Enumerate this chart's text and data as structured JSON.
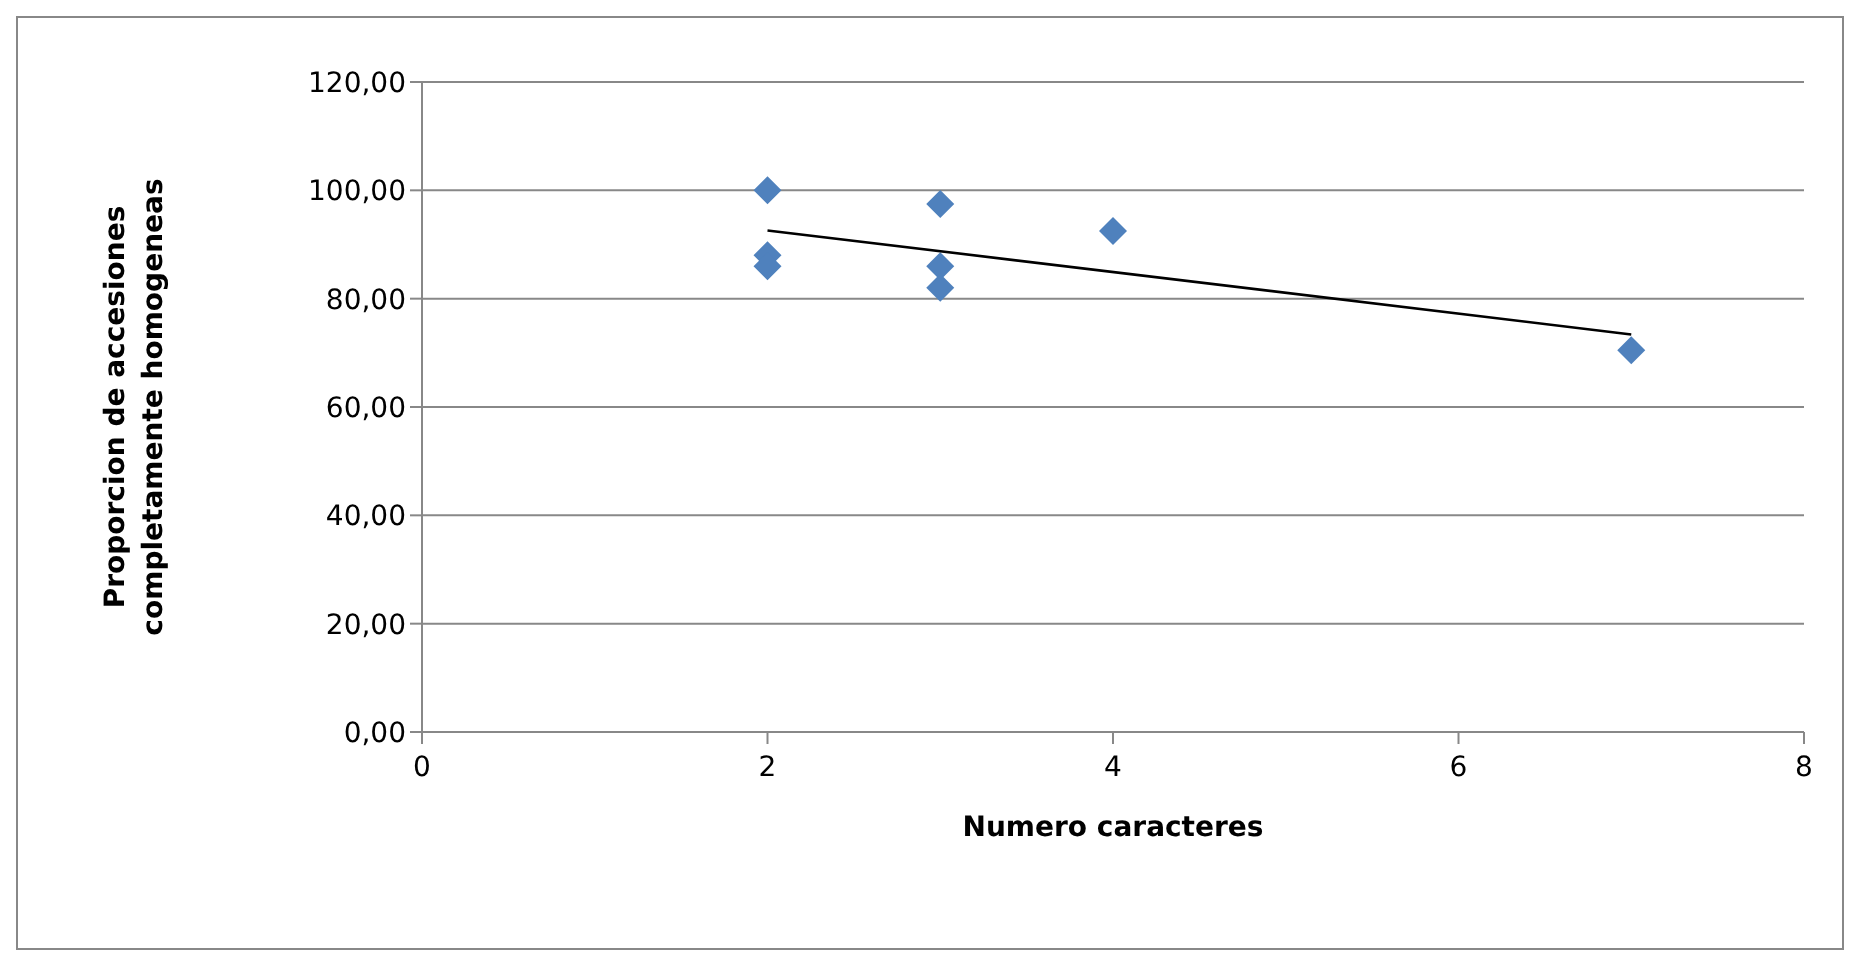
{
  "chart_data": {
    "type": "scatter",
    "xlabel": "Numero caracteres",
    "ylabel": "Proporcion de accesiones completamente homogeneas",
    "xlim": [
      0,
      8
    ],
    "xticks": [
      0,
      2,
      4,
      6,
      8
    ],
    "ylim": [
      0,
      120
    ],
    "yticks": [
      {
        "value": 0,
        "label": "0,00"
      },
      {
        "value": 20,
        "label": "20,00"
      },
      {
        "value": 40,
        "label": "40,00"
      },
      {
        "value": 60,
        "label": "60,00"
      },
      {
        "value": 80,
        "label": "80,00"
      },
      {
        "value": 100,
        "label": "100,00"
      },
      {
        "value": 120,
        "label": "120,00"
      }
    ],
    "grid": "y",
    "marker": "diamond",
    "series": [
      {
        "color": "#4f81bd",
        "x": [
          2,
          2,
          2,
          3,
          3,
          3,
          4,
          7
        ],
        "values": [
          100,
          88,
          86,
          97.5,
          86,
          82,
          92.5,
          70.5
        ]
      },
      {
        "type": "line",
        "color": "#000000",
        "x": [
          2,
          7
        ],
        "values": [
          92.6,
          73.4
        ],
        "marker": "none"
      }
    ]
  }
}
